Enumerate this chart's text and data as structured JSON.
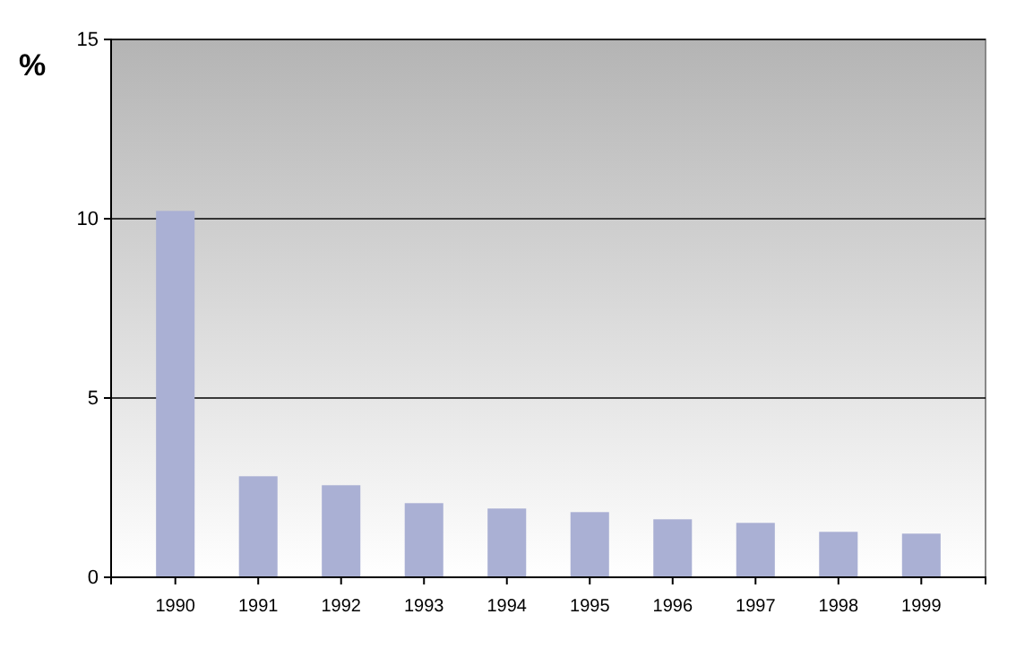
{
  "chart_data": {
    "type": "bar",
    "ylabel": "%",
    "categories": [
      "1990",
      "1991",
      "1992",
      "1993",
      "1994",
      "1995",
      "1996",
      "1997",
      "1998",
      "1999"
    ],
    "values": [
      10.2,
      2.8,
      2.55,
      2.05,
      1.9,
      1.8,
      1.6,
      1.5,
      1.25,
      1.2
    ],
    "color": "#aab0d4",
    "ylim": [
      0,
      15
    ],
    "yticks": [
      0,
      5,
      10,
      15
    ],
    "grid": "y"
  }
}
